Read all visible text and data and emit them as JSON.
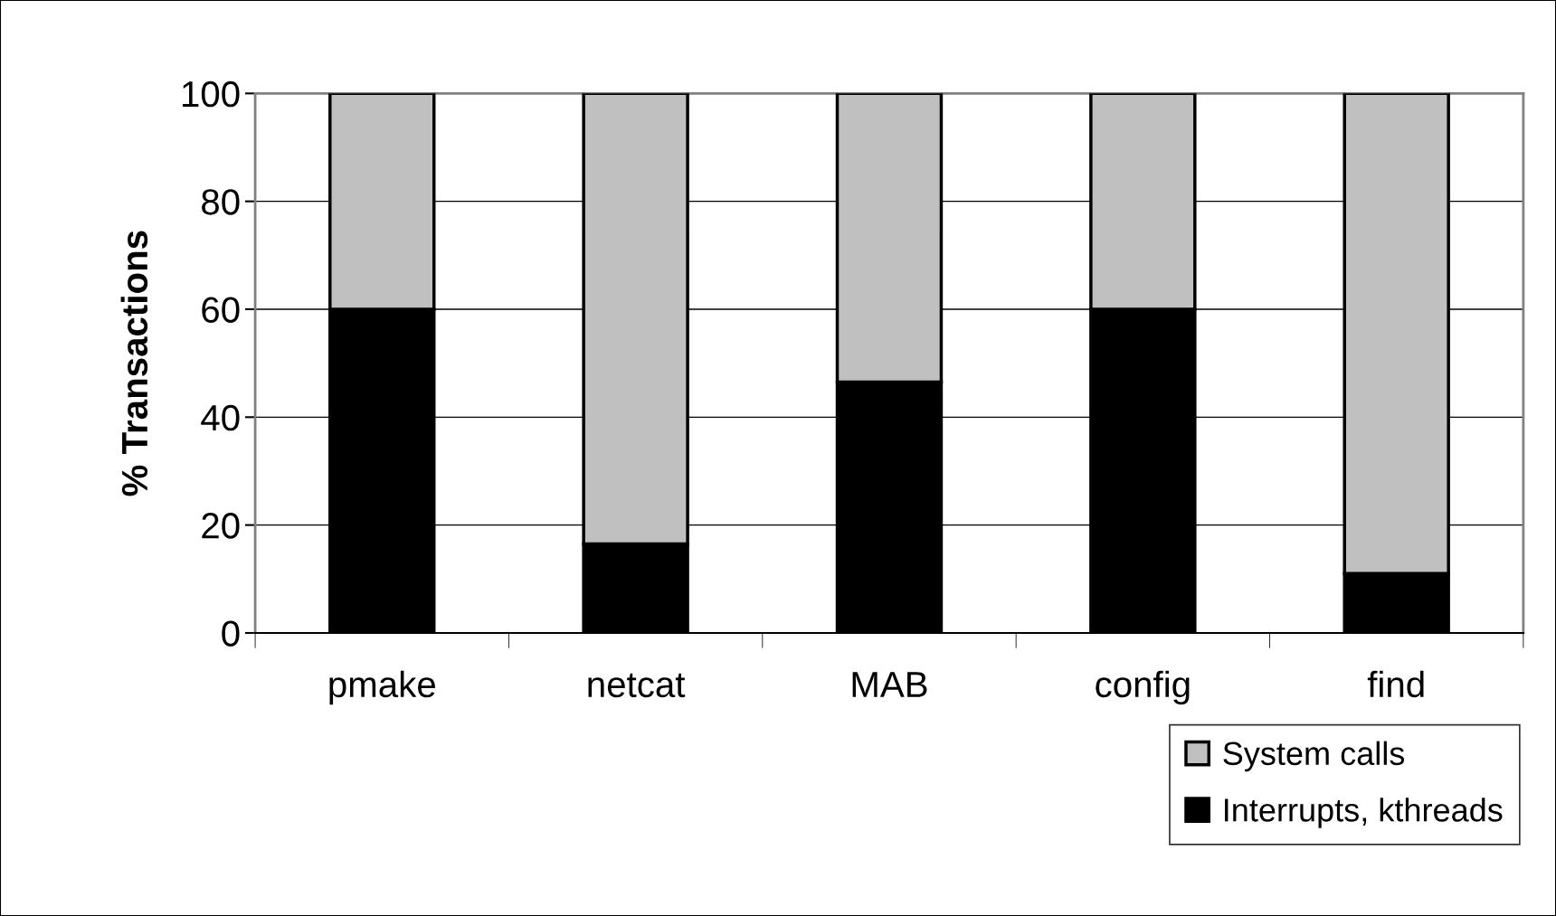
{
  "chart_data": {
    "type": "bar",
    "stacked": true,
    "ylabel": "% Transactions",
    "categories": [
      "pmake",
      "netcat",
      "MAB",
      "config",
      "find"
    ],
    "series": [
      {
        "name": "Interrupts, kthreads",
        "color": "#000000",
        "values": [
          60,
          16.5,
          46.5,
          60,
          11
        ]
      },
      {
        "name": "System calls",
        "color": "#c0c0c0",
        "values": [
          40,
          83.5,
          53.5,
          40,
          89
        ]
      }
    ],
    "ylim": [
      0,
      100
    ],
    "yticks": [
      0,
      20,
      40,
      60,
      80,
      100
    ],
    "grid": "y",
    "legend": "bottom right"
  }
}
